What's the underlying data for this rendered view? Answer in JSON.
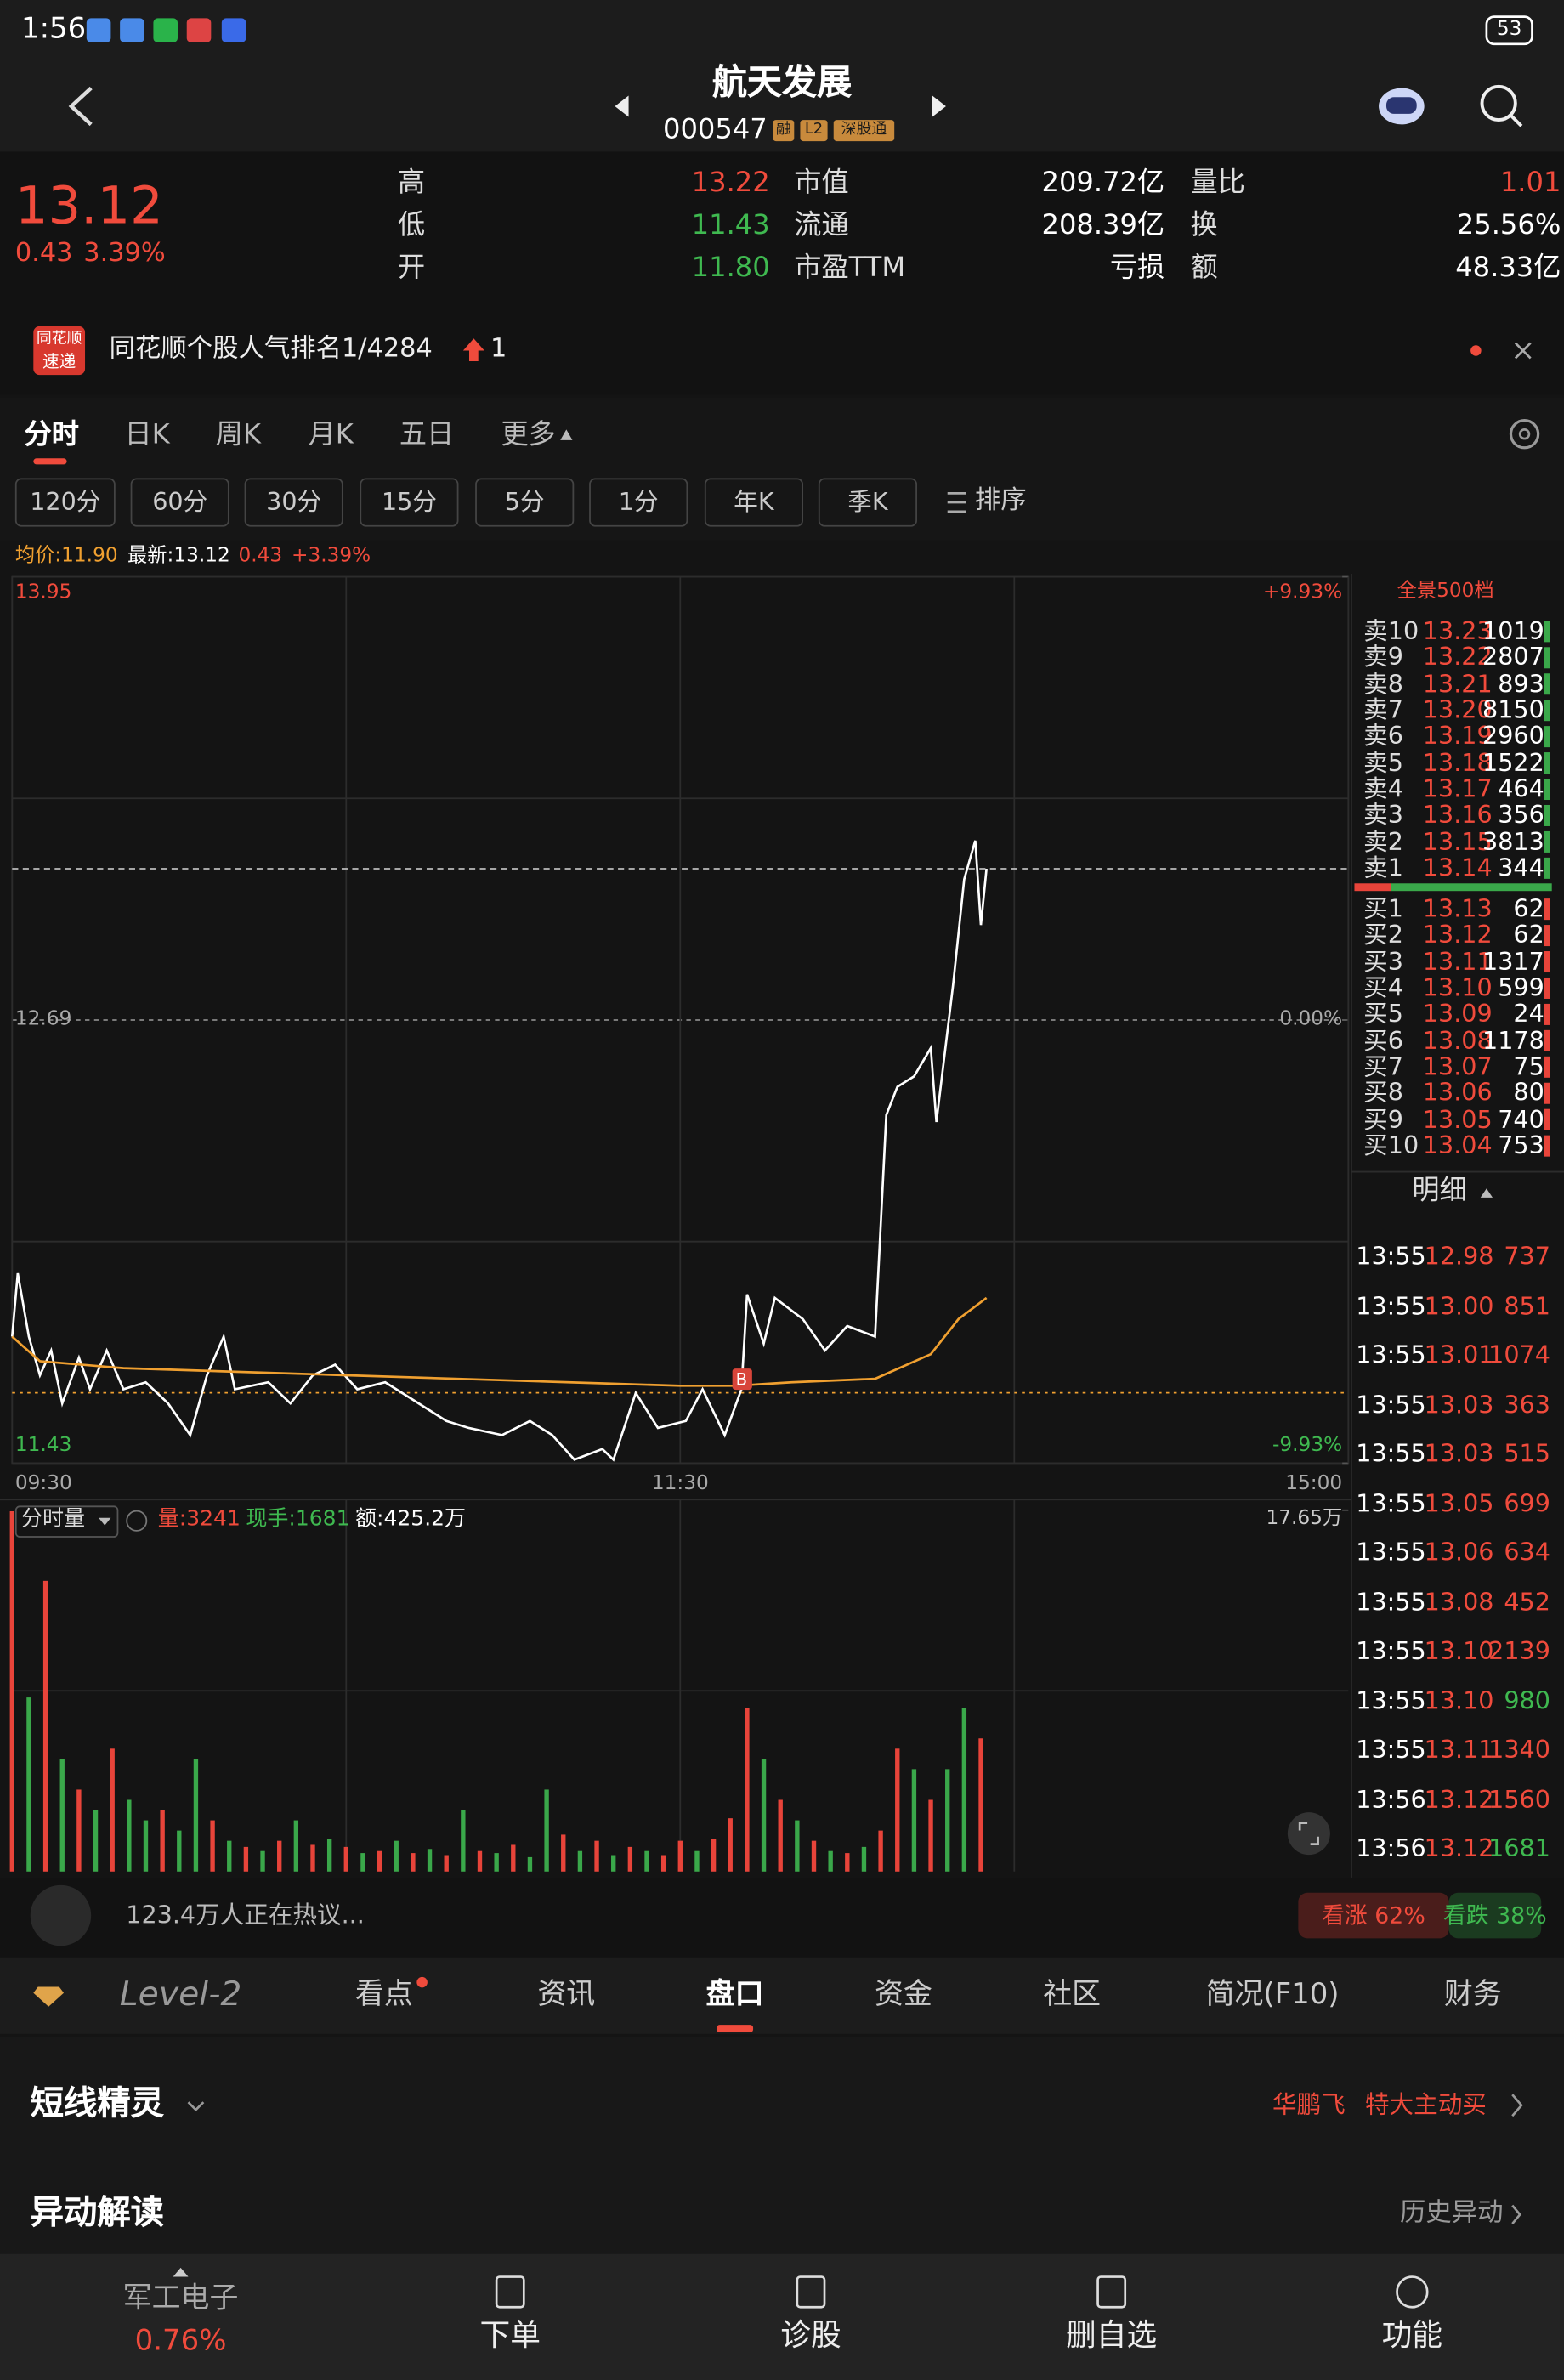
{
  "status_bar": {
    "time": "1:56",
    "battery": "53"
  },
  "header": {
    "title": "航天发展",
    "code": "000547",
    "tags": [
      "融",
      "L2",
      "深股通"
    ]
  },
  "quote": {
    "price": "13.12",
    "change": "0.43",
    "change_pct": "3.39%",
    "stats": [
      {
        "label": "高",
        "value": "13.22",
        "color": "#f04b3c"
      },
      {
        "label": "市值",
        "value": "209.72亿",
        "color": "#ffffff"
      },
      {
        "label": "量比",
        "value": "1.01",
        "color": "#f04b3c"
      },
      {
        "label": "低",
        "value": "11.43",
        "color": "#3fb950"
      },
      {
        "label": "流通",
        "value": "208.39亿",
        "color": "#ffffff"
      },
      {
        "label": "换",
        "value": "25.56%",
        "color": "#ffffff"
      },
      {
        "label": "开",
        "value": "11.80",
        "color": "#3fb950"
      },
      {
        "label": "市盈TTM",
        "value": "亏损",
        "color": "#ffffff"
      },
      {
        "label": "额",
        "value": "48.33亿",
        "color": "#ffffff"
      }
    ]
  },
  "banner": {
    "logo_top": "同花顺",
    "logo_bottom": "速递",
    "text": "同花顺个股人气排名1/4284",
    "rank_change": "1"
  },
  "tabs": {
    "items": [
      "分时",
      "日K",
      "周K",
      "月K",
      "五日",
      "更多"
    ],
    "active": 0
  },
  "periods": [
    "120分",
    "60分",
    "30分",
    "15分",
    "5分",
    "1分",
    "年K",
    "季K"
  ],
  "sort": "排序",
  "chart_info": {
    "avg": "均价:11.90",
    "latest": "最新:13.12",
    "change": "0.43",
    "change_pct": "+3.39%"
  },
  "chart_data": [
    {
      "type": "line",
      "xlim": [
        0,
        240
      ],
      "xticks": [
        {
          "value": 0,
          "label": "09:30"
        },
        {
          "value": 120,
          "label": "11:30"
        },
        {
          "value": 240,
          "label": "15:00"
        }
      ],
      "ylim": [
        11.43,
        13.95
      ],
      "yticks": [
        13.95,
        12.69,
        11.43
      ],
      "y2lim": [
        -9.93,
        9.93
      ],
      "y2ticks": [
        {
          "value": 9.93,
          "label": "+9.93%"
        },
        {
          "value": 0,
          "label": "0.00%"
        },
        {
          "value": -9.93,
          "label": "-9.93%"
        }
      ],
      "series": [
        {
          "color": "#ffffff",
          "x": [
            0,
            1,
            3,
            5,
            7,
            9,
            12,
            14,
            17,
            20,
            24,
            28,
            32,
            35,
            38,
            40,
            46,
            50,
            54,
            58,
            62,
            67,
            73,
            78,
            82,
            88,
            93,
            97,
            101,
            106,
            108,
            112,
            116,
            121,
            124,
            128,
            131,
            132,
            135,
            137,
            142,
            146,
            150,
            155,
            157,
            159,
            162,
            165,
            166,
            169,
            171,
            173,
            174,
            175
          ],
          "values": [
            11.79,
            11.97,
            11.79,
            11.68,
            11.75,
            11.6,
            11.73,
            11.64,
            11.75,
            11.64,
            11.66,
            11.6,
            11.51,
            11.68,
            11.79,
            11.64,
            11.66,
            11.6,
            11.68,
            11.71,
            11.64,
            11.66,
            11.6,
            11.55,
            11.53,
            11.51,
            11.55,
            11.51,
            11.44,
            11.47,
            11.44,
            11.63,
            11.53,
            11.55,
            11.64,
            11.51,
            11.64,
            11.91,
            11.77,
            11.9,
            11.84,
            11.75,
            11.82,
            11.79,
            12.42,
            12.5,
            12.53,
            12.61,
            12.4,
            12.79,
            13.09,
            13.2,
            12.96,
            13.12
          ]
        },
        {
          "color": "#f0a030",
          "x": [
            0,
            5,
            20,
            60,
            100,
            120,
            130,
            140,
            155,
            165,
            170,
            175
          ],
          "values": [
            11.79,
            11.72,
            11.7,
            11.68,
            11.66,
            11.65,
            11.65,
            11.66,
            11.67,
            11.74,
            11.84,
            11.9
          ]
        }
      ],
      "marker": {
        "label": "B",
        "x": 131,
        "value": 11.63
      }
    },
    {
      "type": "bar",
      "title": "分时量",
      "info": [
        "量:3241",
        "现手:1681",
        "额:425.2万"
      ],
      "xlim": [
        0,
        240
      ],
      "ylim": [
        0,
        17.65
      ],
      "yticks": [
        {
          "value": 17.65,
          "label": "17.65万"
        }
      ],
      "x": [
        0,
        3,
        6,
        9,
        12,
        15,
        18,
        21,
        24,
        27,
        30,
        33,
        36,
        39,
        42,
        45,
        48,
        51,
        54,
        57,
        60,
        63,
        66,
        69,
        72,
        75,
        78,
        81,
        84,
        87,
        90,
        93,
        96,
        99,
        102,
        105,
        108,
        111,
        114,
        117,
        120,
        123,
        126,
        129,
        132,
        135,
        138,
        141,
        144,
        147,
        150,
        153,
        156,
        159,
        162,
        165,
        168,
        171,
        174
      ],
      "values": [
        17.6,
        8.5,
        14.2,
        5.5,
        4.0,
        3.0,
        6.0,
        3.5,
        2.5,
        3.0,
        2.0,
        5.5,
        2.5,
        1.5,
        1.2,
        1.0,
        1.5,
        2.5,
        1.3,
        1.6,
        1.2,
        0.9,
        1.0,
        1.5,
        0.9,
        1.1,
        0.8,
        3.0,
        1.0,
        0.9,
        1.3,
        0.7,
        4.0,
        1.8,
        1.0,
        1.5,
        0.8,
        1.2,
        1.0,
        0.8,
        1.5,
        1.0,
        1.6,
        2.6,
        8.0,
        5.5,
        3.5,
        2.5,
        1.5,
        1.0,
        0.9,
        1.2,
        2.0,
        6.0,
        5.0,
        3.5,
        5.0,
        8.0,
        6.5
      ],
      "colors": [
        "#e8443a",
        "#3aa84a",
        "#e8443a",
        "#3aa84a",
        "#e8443a",
        "#3aa84a",
        "#e8443a",
        "#3aa84a",
        "#3aa84a",
        "#e8443a",
        "#3aa84a",
        "#3aa84a",
        "#e8443a",
        "#3aa84a",
        "#e8443a",
        "#3aa84a",
        "#e8443a",
        "#3aa84a",
        "#e8443a",
        "#3aa84a",
        "#e8443a",
        "#3aa84a",
        "#e8443a",
        "#3aa84a",
        "#e8443a",
        "#3aa84a",
        "#e8443a",
        "#3aa84a",
        "#e8443a",
        "#3aa84a",
        "#e8443a",
        "#3aa84a",
        "#3aa84a",
        "#e8443a",
        "#3aa84a",
        "#e8443a",
        "#3aa84a",
        "#e8443a",
        "#3aa84a",
        "#e8443a",
        "#e8443a",
        "#3aa84a",
        "#e8443a",
        "#e8443a",
        "#e8443a",
        "#3aa84a",
        "#e8443a",
        "#3aa84a",
        "#e8443a",
        "#3aa84a",
        "#e8443a",
        "#3aa84a",
        "#e8443a",
        "#e8443a",
        "#3aa84a",
        "#e8443a",
        "#3aa84a",
        "#3aa84a",
        "#e8443a"
      ]
    }
  ],
  "order_book": {
    "title": "全景500档",
    "asks": [
      [
        "卖10",
        "13.23",
        "1019"
      ],
      [
        "卖9",
        "13.22",
        "2807"
      ],
      [
        "卖8",
        "13.21",
        "893"
      ],
      [
        "卖7",
        "13.20",
        "8150"
      ],
      [
        "卖6",
        "13.19",
        "2960"
      ],
      [
        "卖5",
        "13.18",
        "1522"
      ],
      [
        "卖4",
        "13.17",
        "464"
      ],
      [
        "卖3",
        "13.16",
        "356"
      ],
      [
        "卖2",
        "13.15",
        "3813"
      ],
      [
        "卖1",
        "13.14",
        "344"
      ]
    ],
    "bids": [
      [
        "买1",
        "13.13",
        "62"
      ],
      [
        "买2",
        "13.12",
        "62"
      ],
      [
        "买3",
        "13.11",
        "1317"
      ],
      [
        "买4",
        "13.10",
        "599"
      ],
      [
        "买5",
        "13.09",
        "24"
      ],
      [
        "买6",
        "13.08",
        "1178"
      ],
      [
        "买7",
        "13.07",
        "75"
      ],
      [
        "买8",
        "13.06",
        "80"
      ],
      [
        "买9",
        "13.05",
        "740"
      ],
      [
        "买10",
        "13.04",
        "753"
      ]
    ]
  },
  "trades": {
    "title": "明细",
    "rows": [
      {
        "time": "13:55",
        "price": "12.98",
        "volume": "737",
        "color": "#f04b3c"
      },
      {
        "time": "13:55",
        "price": "13.00",
        "volume": "851",
        "color": "#f04b3c"
      },
      {
        "time": "13:55",
        "price": "13.01",
        "volume": "1074",
        "color": "#f04b3c"
      },
      {
        "time": "13:55",
        "price": "13.03",
        "volume": "363",
        "color": "#f04b3c"
      },
      {
        "time": "13:55",
        "price": "13.03",
        "volume": "515",
        "color": "#f04b3c"
      },
      {
        "time": "13:55",
        "price": "13.05",
        "volume": "699",
        "color": "#f04b3c"
      },
      {
        "time": "13:55",
        "price": "13.06",
        "volume": "634",
        "color": "#f04b3c"
      },
      {
        "time": "13:55",
        "price": "13.08",
        "volume": "452",
        "color": "#f04b3c"
      },
      {
        "time": "13:55",
        "price": "13.10",
        "volume": "2139",
        "color": "#f04b3c"
      },
      {
        "time": "13:55",
        "price": "13.10",
        "volume": "980",
        "color": "#3fb950"
      },
      {
        "time": "13:55",
        "price": "13.11",
        "volume": "1340",
        "color": "#f04b3c"
      },
      {
        "time": "13:56",
        "price": "13.12",
        "volume": "1560",
        "color": "#f04b3c"
      },
      {
        "time": "13:56",
        "price": "13.12",
        "volume": "1681",
        "color": "#3fb950"
      }
    ]
  },
  "social": {
    "text": "123.4万人正在热议...",
    "bull_label": "看涨 62%",
    "bull": 62,
    "bear_label": "看跌 38%",
    "bear": 38
  },
  "nav_tabs": {
    "items": [
      "Level-2",
      "看点",
      "资讯",
      "盘口",
      "资金",
      "社区",
      "简况(F10)",
      "财务"
    ],
    "active": 3
  },
  "sections": [
    {
      "title": "短线精灵",
      "tags": [
        "华鹏飞",
        "特大主动买"
      ]
    },
    {
      "title": "异动解读",
      "link": "历史异动"
    }
  ],
  "footer": {
    "sector": "军工电子",
    "sector_change": "0.76%",
    "actions": [
      "下单",
      "诊股",
      "删自选",
      "功能"
    ]
  }
}
